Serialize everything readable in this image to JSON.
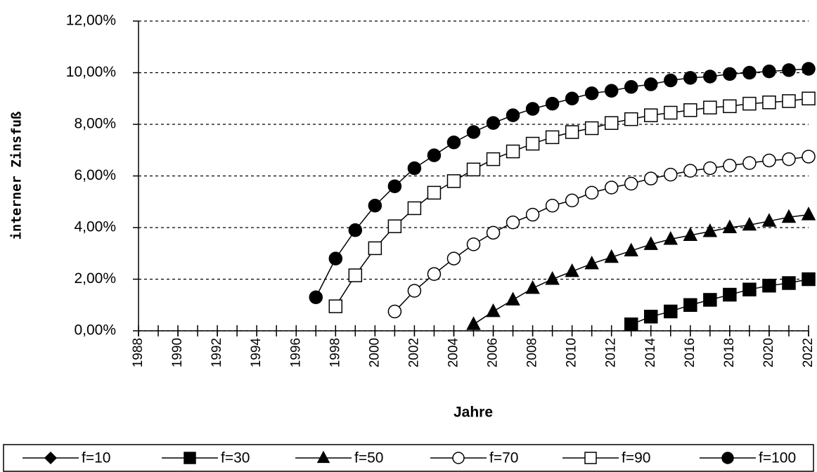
{
  "chart_data": {
    "type": "line",
    "x_label": "Jahre",
    "y_label": "interner Zinsfuß",
    "x": [
      1988,
      1989,
      1990,
      1991,
      1992,
      1993,
      1994,
      1995,
      1996,
      1997,
      1998,
      1999,
      2000,
      2001,
      2002,
      2003,
      2004,
      2005,
      2006,
      2007,
      2008,
      2009,
      2010,
      2011,
      2012,
      2013,
      2014,
      2015,
      2016,
      2017,
      2018,
      2019,
      2020,
      2021,
      2022
    ],
    "xlim": [
      1988,
      2022
    ],
    "xticks": [
      1988,
      1990,
      1992,
      1994,
      1996,
      1998,
      2000,
      2002,
      2004,
      2006,
      2008,
      2010,
      2012,
      2014,
      2016,
      2018,
      2020,
      2022
    ],
    "ylim": [
      0,
      12
    ],
    "yticks": [
      {
        "value": 0,
        "label": "0,00%"
      },
      {
        "value": 2,
        "label": "2,00%"
      },
      {
        "value": 4,
        "label": "4,00%"
      },
      {
        "value": 6,
        "label": "6,00%"
      },
      {
        "value": 8,
        "label": "8,00%"
      },
      {
        "value": 10,
        "label": "10,00%"
      },
      {
        "value": 12,
        "label": "12,00%"
      }
    ],
    "grid": true,
    "legend": "bottom",
    "series": [
      {
        "name": "f=10",
        "color": "#000000",
        "marker": "diamond",
        "filled": true,
        "values": [
          null,
          null,
          null,
          null,
          null,
          null,
          null,
          null,
          null,
          null,
          null,
          null,
          null,
          null,
          null,
          null,
          null,
          null,
          null,
          null,
          null,
          null,
          null,
          null,
          null,
          null,
          null,
          null,
          null,
          null,
          null,
          null,
          null,
          null,
          null
        ]
      },
      {
        "name": "f=30",
        "color": "#000000",
        "marker": "square",
        "filled": true,
        "values": [
          null,
          null,
          null,
          null,
          null,
          null,
          null,
          null,
          null,
          null,
          null,
          null,
          null,
          null,
          null,
          null,
          null,
          null,
          null,
          null,
          null,
          null,
          null,
          null,
          null,
          0.25,
          0.55,
          0.75,
          1.0,
          1.2,
          1.4,
          1.6,
          1.75,
          1.85,
          2.0
        ]
      },
      {
        "name": "f=50",
        "color": "#000000",
        "marker": "triangle",
        "filled": true,
        "values": [
          null,
          null,
          null,
          null,
          null,
          null,
          null,
          null,
          null,
          null,
          null,
          null,
          null,
          null,
          null,
          null,
          null,
          0.25,
          0.75,
          1.2,
          1.65,
          2.0,
          2.3,
          2.6,
          2.85,
          3.1,
          3.35,
          3.55,
          3.7,
          3.85,
          4.0,
          4.1,
          4.25,
          4.4,
          4.5
        ]
      },
      {
        "name": "f=70",
        "color": "#000000",
        "marker": "circle",
        "filled": false,
        "values": [
          null,
          null,
          null,
          null,
          null,
          null,
          null,
          null,
          null,
          null,
          null,
          null,
          null,
          0.75,
          1.55,
          2.2,
          2.8,
          3.35,
          3.8,
          4.2,
          4.5,
          4.85,
          5.05,
          5.35,
          5.55,
          5.7,
          5.9,
          6.05,
          6.2,
          6.3,
          6.4,
          6.5,
          6.6,
          6.65,
          6.75
        ]
      },
      {
        "name": "f=90",
        "color": "#000000",
        "marker": "square",
        "filled": false,
        "values": [
          null,
          null,
          null,
          null,
          null,
          null,
          null,
          null,
          null,
          null,
          0.95,
          2.15,
          3.2,
          4.05,
          4.75,
          5.35,
          5.8,
          6.25,
          6.65,
          6.95,
          7.25,
          7.5,
          7.7,
          7.85,
          8.05,
          8.2,
          8.35,
          8.45,
          8.55,
          8.65,
          8.7,
          8.8,
          8.85,
          8.9,
          9.0
        ]
      },
      {
        "name": "f=100",
        "color": "#000000",
        "marker": "circle",
        "filled": true,
        "values": [
          null,
          null,
          null,
          null,
          null,
          null,
          null,
          null,
          null,
          1.3,
          2.8,
          3.9,
          4.85,
          5.6,
          6.3,
          6.8,
          7.3,
          7.7,
          8.05,
          8.35,
          8.6,
          8.8,
          9.0,
          9.2,
          9.3,
          9.45,
          9.55,
          9.7,
          9.8,
          9.85,
          9.95,
          10.0,
          10.05,
          10.1,
          10.15
        ]
      }
    ]
  }
}
